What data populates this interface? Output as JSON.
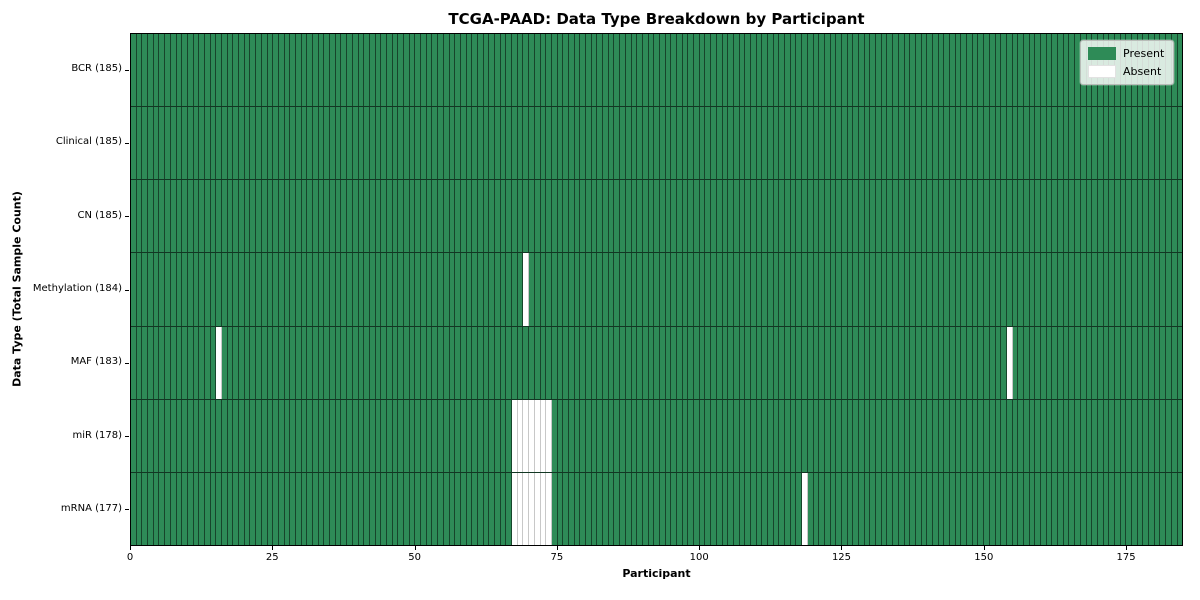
{
  "chart_data": {
    "type": "heatmap",
    "title": "TCGA-PAAD: Data Type Breakdown by Participant",
    "xlabel": "Participant",
    "ylabel": "Data Type (Total Sample Count)",
    "x_range": [
      0,
      185
    ],
    "x_ticks": [
      0,
      25,
      50,
      75,
      100,
      125,
      150,
      175
    ],
    "n_participants": 185,
    "legend_position": "upper right",
    "legend": [
      {
        "label": "Present",
        "color": "#2e8b57"
      },
      {
        "label": "Absent",
        "color": "#ffffff"
      }
    ],
    "rows": [
      {
        "label": "BCR (185)",
        "present_count": 185,
        "absent_participants": []
      },
      {
        "label": "Clinical (185)",
        "present_count": 185,
        "absent_participants": []
      },
      {
        "label": "CN (185)",
        "present_count": 185,
        "absent_participants": []
      },
      {
        "label": "Methylation (184)",
        "present_count": 184,
        "absent_participants": [
          69
        ]
      },
      {
        "label": "MAF (183)",
        "present_count": 183,
        "absent_participants": [
          15,
          154
        ]
      },
      {
        "label": "miR (178)",
        "present_count": 178,
        "absent_participants": [
          67,
          68,
          69,
          70,
          71,
          72,
          73
        ]
      },
      {
        "label": "mRNA (177)",
        "present_count": 177,
        "absent_participants": [
          67,
          68,
          69,
          70,
          71,
          72,
          73,
          118
        ]
      }
    ]
  },
  "colors": {
    "present": "#2e8b57",
    "absent": "#ffffff",
    "cell_grid_line": "rgba(0,0,0,0.5)",
    "absent_grid_line": "#c8c8c8",
    "spine": "#000000",
    "tick": "#000000"
  }
}
